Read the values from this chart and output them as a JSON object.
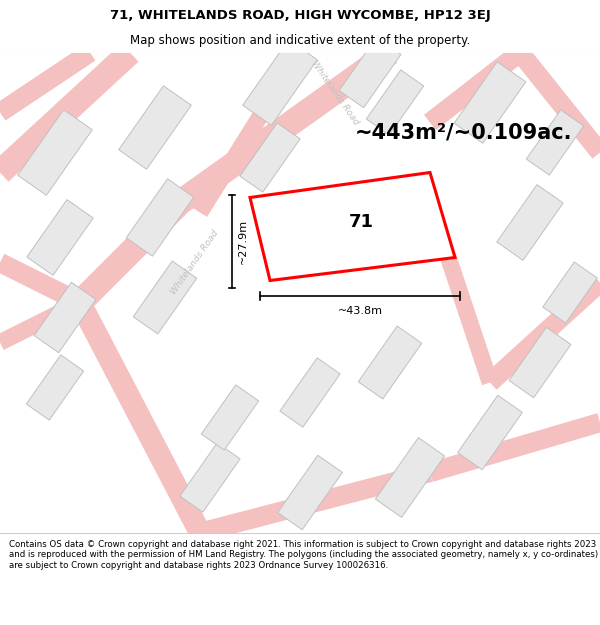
{
  "title_line1": "71, WHITELANDS ROAD, HIGH WYCOMBE, HP12 3EJ",
  "title_line2": "Map shows position and indicative extent of the property.",
  "area_text": "~443m²/~0.109ac.",
  "property_label": "71",
  "dim_width": "~43.8m",
  "dim_height": "~27.9m",
  "road_label_upper": "Whitelands Road",
  "road_label_lower": "Whitelands Road",
  "copyright_text": "Contains OS data © Crown copyright and database right 2021. This information is subject to Crown copyright and database rights 2023 and is reproduced with the permission of HM Land Registry. The polygons (including the associated geometry, namely x, y co-ordinates) are subject to Crown copyright and database rights 2023 Ordnance Survey 100026316.",
  "bg_color": "#ffffff",
  "map_bg": "#f8f8f8",
  "building_fill": "#e8e8e8",
  "building_edge": "#c0c0c0",
  "road_color": "#f5c0c0",
  "road_edge_color": "#e8a0a0",
  "property_color": "#ff0000",
  "title_fontsize": 9.5,
  "subtitle_fontsize": 8.5,
  "area_fontsize": 15,
  "label_fontsize": 13,
  "dim_fontsize": 8,
  "copyright_fontsize": 6.2,
  "road_label_color": "#c0c0c0",
  "road_label_fontsize": 6.5,
  "map_border_color": "#cccccc"
}
